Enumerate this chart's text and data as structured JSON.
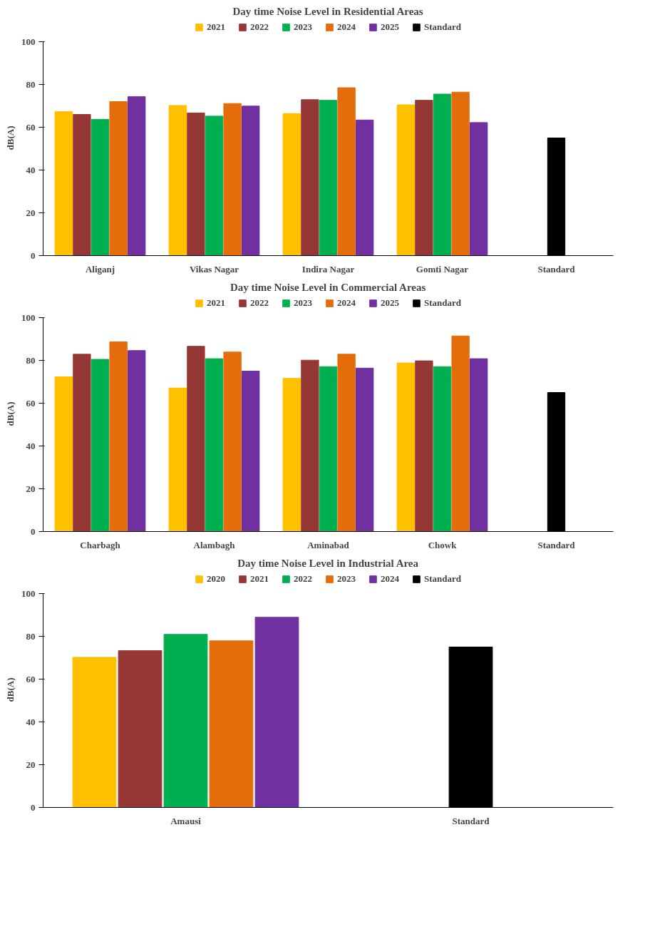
{
  "chart_data": [
    {
      "type": "bar",
      "title": "Day time Noise Level in Residential Areas",
      "ylabel": "dB(A)",
      "categories": [
        "Aliganj",
        "Vikas Nagar",
        "Indira Nagar",
        "Gomti Nagar",
        "Standard"
      ],
      "ylim": [
        0,
        100
      ],
      "yticks": [
        0,
        20,
        40,
        60,
        80,
        100
      ],
      "legend": "top",
      "series": [
        {
          "name": "2021",
          "color": "#ffc000",
          "values": [
            67.3,
            70.2,
            66.4,
            70.5,
            null
          ]
        },
        {
          "name": "2022",
          "color": "#953735",
          "values": [
            66.0,
            66.7,
            72.9,
            72.6,
            null
          ]
        },
        {
          "name": "2023",
          "color": "#00b050",
          "values": [
            63.7,
            65.2,
            72.6,
            75.5,
            null
          ]
        },
        {
          "name": "2024",
          "color": "#e46c0a",
          "values": [
            72.0,
            71.1,
            78.5,
            76.4,
            null
          ]
        },
        {
          "name": "2025",
          "color": "#7030a0",
          "values": [
            74.3,
            69.9,
            63.4,
            62.2,
            null
          ]
        },
        {
          "name": "Standard",
          "color": "#000000",
          "values": [
            null,
            null,
            null,
            null,
            55
          ]
        }
      ]
    },
    {
      "type": "bar",
      "title": "Day time Noise Level in Commercial Areas",
      "ylabel": "dB(A)",
      "categories": [
        "Charbagh",
        "Alambagh",
        "Aminabad",
        "Chowk",
        "Standard"
      ],
      "ylim": [
        0,
        100
      ],
      "yticks": [
        0,
        20,
        40,
        60,
        80,
        100
      ],
      "legend": "top",
      "series": [
        {
          "name": "2021",
          "color": "#ffc000",
          "values": [
            72.3,
            67.1,
            71.6,
            78.8,
            null
          ]
        },
        {
          "name": "2022",
          "color": "#953735",
          "values": [
            82.9,
            86.6,
            80.1,
            79.8,
            null
          ]
        },
        {
          "name": "2023",
          "color": "#00b050",
          "values": [
            80.5,
            80.8,
            77.1,
            77.1,
            null
          ]
        },
        {
          "name": "2024",
          "color": "#e46c0a",
          "values": [
            88.7,
            83.9,
            82.9,
            91.4,
            null
          ]
        },
        {
          "name": "2025",
          "color": "#7030a0",
          "values": [
            84.6,
            75.0,
            76.4,
            80.8,
            null
          ]
        },
        {
          "name": "Standard",
          "color": "#000000",
          "values": [
            null,
            null,
            null,
            null,
            65
          ]
        }
      ]
    },
    {
      "type": "bar",
      "title": "Day time Noise Level in Industrial Area",
      "ylabel": "dB(A)",
      "categories": [
        "Amausi",
        "Standard"
      ],
      "ylim": [
        0,
        100
      ],
      "yticks": [
        0,
        20,
        40,
        60,
        80,
        100
      ],
      "legend": "top",
      "series": [
        {
          "name": "2020",
          "color": "#ffc000",
          "values": [
            70.2,
            null
          ]
        },
        {
          "name": "2021",
          "color": "#953735",
          "values": [
            73.3,
            null
          ]
        },
        {
          "name": "2022",
          "color": "#00b050",
          "values": [
            80.9,
            null
          ]
        },
        {
          "name": "2023",
          "color": "#e46c0a",
          "values": [
            77.9,
            null
          ]
        },
        {
          "name": "2024",
          "color": "#7030a0",
          "values": [
            88.9,
            null
          ]
        },
        {
          "name": "Standard",
          "color": "#000000",
          "values": [
            null,
            75
          ]
        }
      ]
    }
  ]
}
